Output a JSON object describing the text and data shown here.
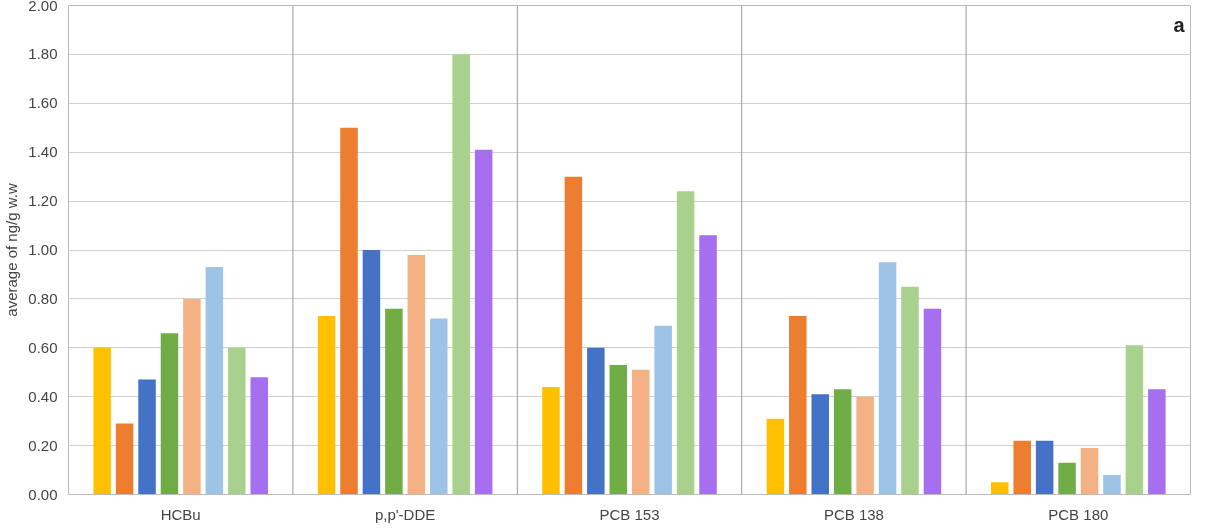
{
  "chart_data": {
    "type": "bar",
    "ylabel": "average of ng/g w.w",
    "categories": [
      "HCBu",
      "p,p'-DDE",
      "PCB 153",
      "PCB 138",
      "PCB 180"
    ],
    "series": [
      {
        "color": "#ffc000",
        "values": [
          0.6,
          0.73,
          0.44,
          0.31,
          0.05
        ]
      },
      {
        "color": "#ed7d31",
        "values": [
          0.29,
          1.5,
          1.3,
          0.73,
          0.22
        ]
      },
      {
        "color": "#4472c4",
        "values": [
          0.47,
          1.0,
          0.6,
          0.41,
          0.22
        ]
      },
      {
        "color": "#70ad47",
        "values": [
          0.66,
          0.76,
          0.53,
          0.43,
          0.13
        ]
      },
      {
        "color": "#f4b183",
        "values": [
          0.8,
          0.98,
          0.51,
          0.4,
          0.19
        ]
      },
      {
        "color": "#9dc3e6",
        "values": [
          0.93,
          0.72,
          0.69,
          0.95,
          0.08
        ]
      },
      {
        "color": "#a9d18e",
        "values": [
          0.6,
          1.8,
          1.24,
          0.85,
          0.61
        ]
      },
      {
        "color": "#a66ff0",
        "values": [
          0.48,
          1.41,
          1.06,
          0.76,
          0.43
        ]
      }
    ],
    "ylim": [
      0,
      2
    ],
    "yticks": [
      {
        "value": 0,
        "label": "0.00"
      },
      {
        "value": 0.2,
        "label": "0.20"
      },
      {
        "value": 0.4,
        "label": "0.40"
      },
      {
        "value": 0.6,
        "label": "0.60"
      },
      {
        "value": 0.8,
        "label": "0.80"
      },
      {
        "value": 1.0,
        "label": "1.00"
      },
      {
        "value": 1.2,
        "label": "1.20"
      },
      {
        "value": 1.4,
        "label": "1.40"
      },
      {
        "value": 1.6,
        "label": "1.60"
      },
      {
        "value": 1.8,
        "label": "1.80"
      },
      {
        "value": 2.0,
        "label": "2.00"
      }
    ],
    "grid": true,
    "annotations": [
      "a"
    ]
  }
}
